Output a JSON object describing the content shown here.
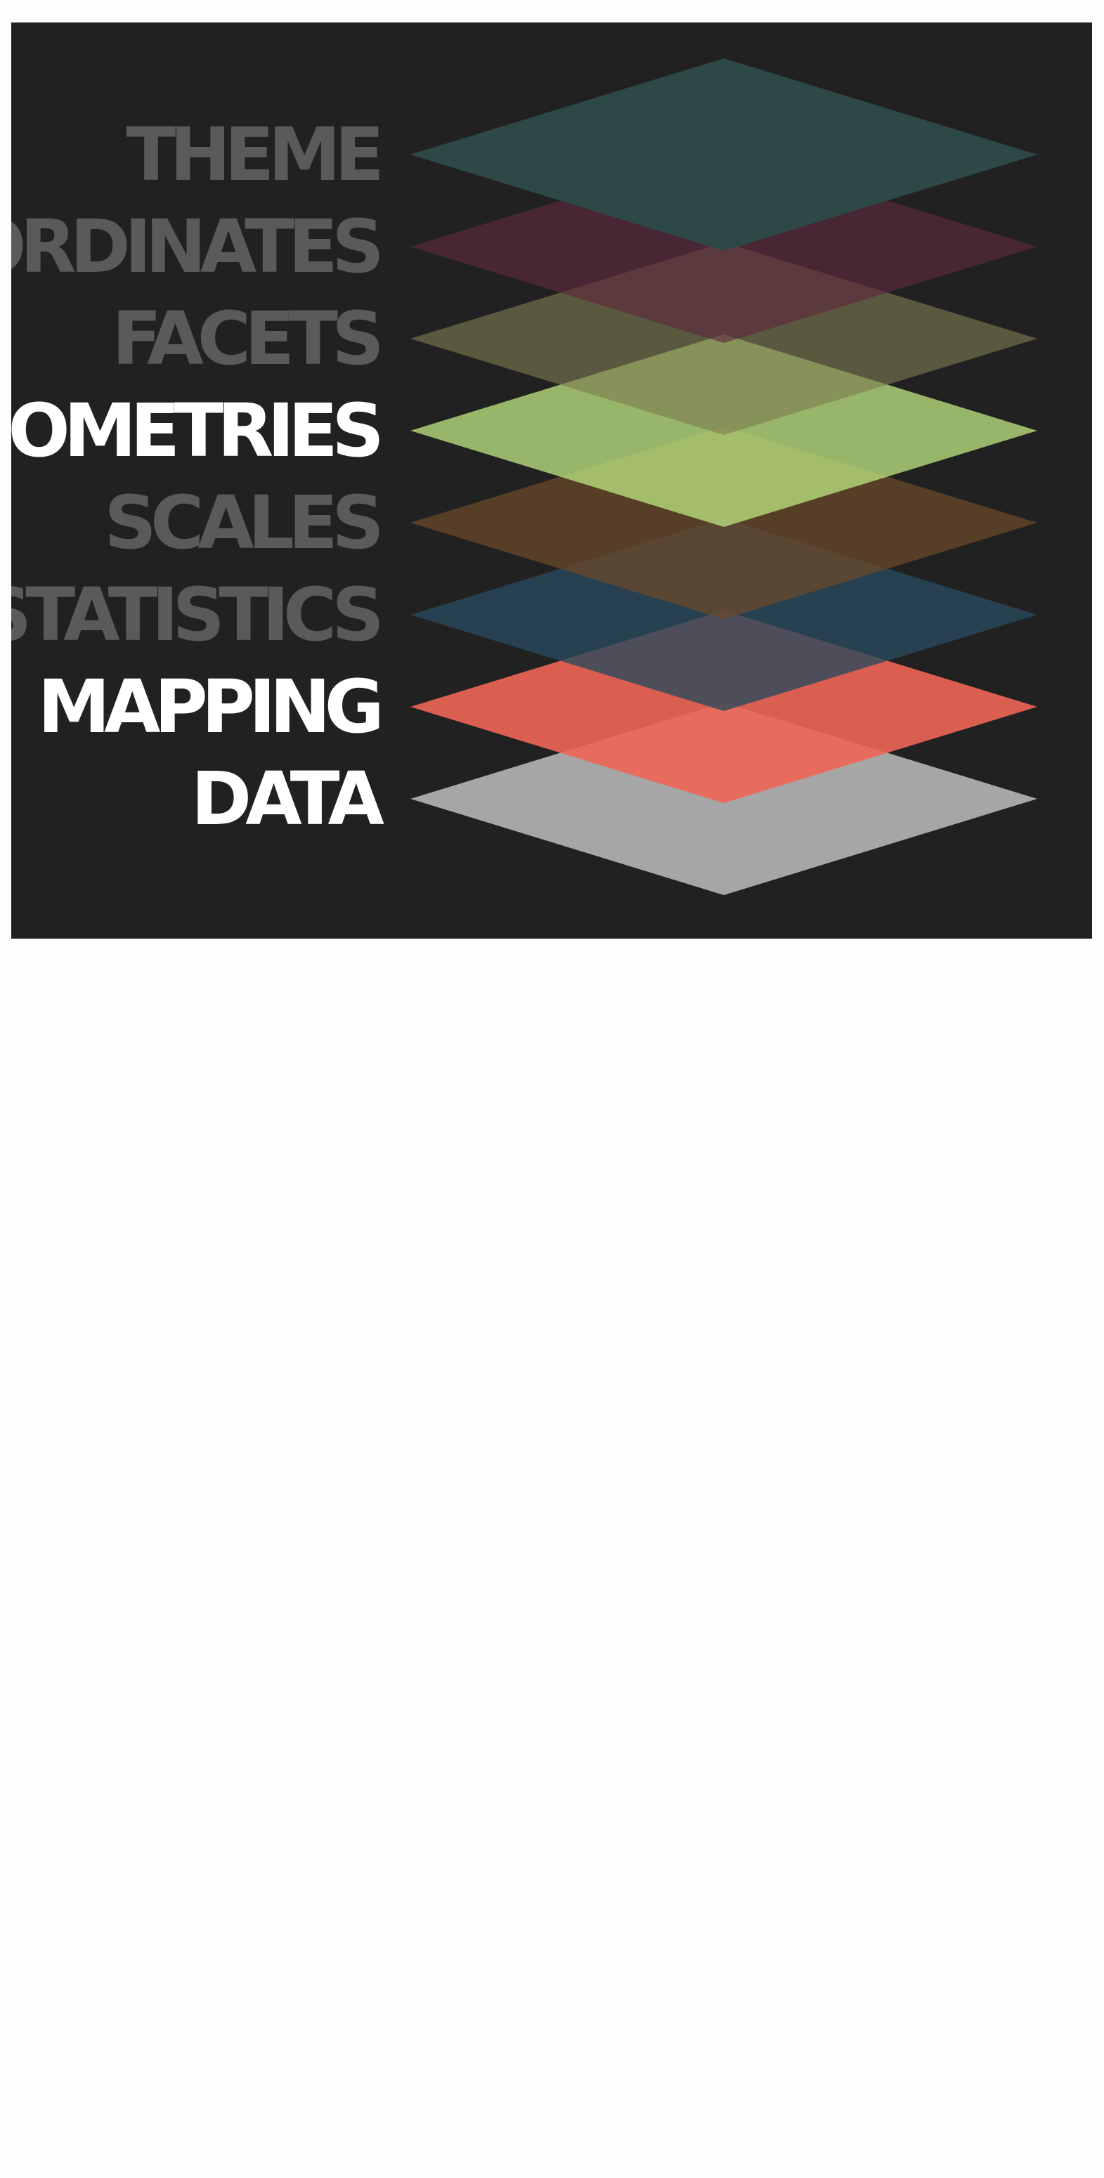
{
  "figure": {
    "background": "#212121",
    "layers": [
      {
        "label": "THEME",
        "label_color": "#5a5a5a",
        "fill": "#2e4848",
        "opacity": 1.0,
        "highlighted": false
      },
      {
        "label": "COORDINATES",
        "label_color": "#5a5a5a",
        "fill": "#5e2a3e",
        "opacity": 0.65,
        "highlighted": false
      },
      {
        "label": "FACETS",
        "label_color": "#5a5a5a",
        "fill": "#7e7a50",
        "opacity": 0.62,
        "highlighted": false
      },
      {
        "label": "GEOMETRIES",
        "label_color": "#ffffff",
        "fill": "#b8e07e",
        "opacity": 0.78,
        "highlighted": true
      },
      {
        "label": "SCALES",
        "label_color": "#5a5a5a",
        "fill": "#6a4a2a",
        "opacity": 0.75,
        "highlighted": false
      },
      {
        "label": "STATISTICS",
        "label_color": "#5a5a5a",
        "fill": "#2a4a5e",
        "opacity": 0.8,
        "highlighted": false
      },
      {
        "label": "MAPPING",
        "label_color": "#ffffff",
        "fill": "#f06655",
        "opacity": 0.9,
        "highlighted": true
      },
      {
        "label": "DATA",
        "label_color": "#ffffff",
        "fill": "#aeaeae",
        "opacity": 0.95,
        "highlighted": true
      }
    ]
  }
}
